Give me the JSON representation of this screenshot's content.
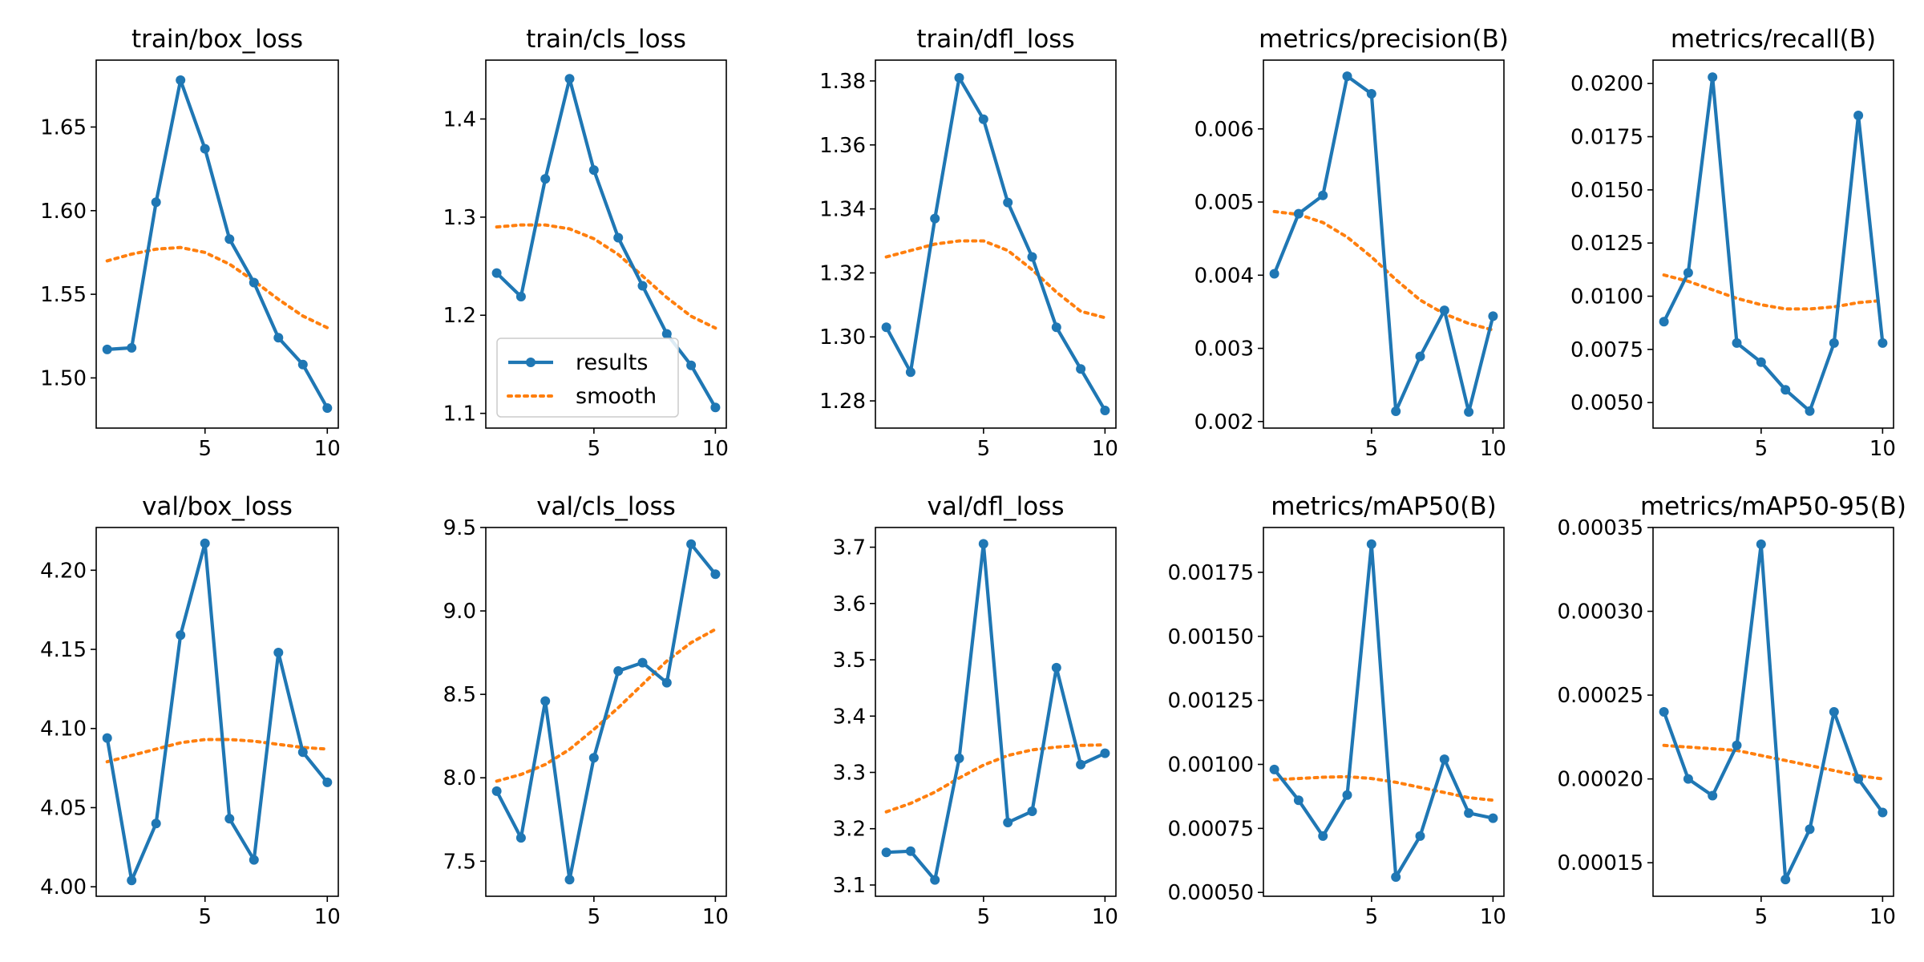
{
  "chart_data": [
    {
      "type": "line",
      "title": "train/box_loss",
      "x": [
        1,
        2,
        3,
        4,
        5,
        6,
        7,
        8,
        9,
        10
      ],
      "xticks": [
        "5",
        "10"
      ],
      "xtick_values": [
        5,
        10
      ],
      "xlim": [
        0.55,
        10.45
      ],
      "ylim": [
        1.47,
        1.69
      ],
      "yticks": [
        "1.50",
        "1.55",
        "1.60",
        "1.65"
      ],
      "ytick_values": [
        1.5,
        1.55,
        1.6,
        1.65
      ],
      "series": [
        {
          "name": "results",
          "values": [
            1.517,
            1.518,
            1.605,
            1.678,
            1.637,
            1.583,
            1.557,
            1.524,
            1.508,
            1.482
          ]
        },
        {
          "name": "smooth",
          "values": [
            1.57,
            1.574,
            1.577,
            1.578,
            1.575,
            1.568,
            1.558,
            1.547,
            1.537,
            1.53
          ]
        }
      ]
    },
    {
      "type": "line",
      "title": "train/cls_loss",
      "x": [
        1,
        2,
        3,
        4,
        5,
        6,
        7,
        8,
        9,
        10
      ],
      "xticks": [
        "5",
        "10"
      ],
      "xtick_values": [
        5,
        10
      ],
      "xlim": [
        0.55,
        10.45
      ],
      "ylim": [
        1.085,
        1.46
      ],
      "yticks": [
        "1.1",
        "1.2",
        "1.3",
        "1.4"
      ],
      "ytick_values": [
        1.1,
        1.2,
        1.3,
        1.4
      ],
      "series": [
        {
          "name": "results",
          "values": [
            1.243,
            1.219,
            1.339,
            1.441,
            1.348,
            1.279,
            1.23,
            1.181,
            1.149,
            1.106
          ]
        },
        {
          "name": "smooth",
          "values": [
            1.29,
            1.292,
            1.292,
            1.288,
            1.278,
            1.262,
            1.24,
            1.218,
            1.199,
            1.187
          ]
        }
      ]
    },
    {
      "type": "line",
      "title": "train/dfl_loss",
      "x": [
        1,
        2,
        3,
        4,
        5,
        6,
        7,
        8,
        9,
        10
      ],
      "xticks": [
        "5",
        "10"
      ],
      "xtick_values": [
        5,
        10
      ],
      "xlim": [
        0.55,
        10.45
      ],
      "ylim": [
        1.2715,
        1.3865
      ],
      "yticks": [
        "1.28",
        "1.30",
        "1.32",
        "1.34",
        "1.36",
        "1.38"
      ],
      "ytick_values": [
        1.28,
        1.3,
        1.32,
        1.34,
        1.36,
        1.38
      ],
      "series": [
        {
          "name": "results",
          "values": [
            1.303,
            1.289,
            1.337,
            1.381,
            1.368,
            1.342,
            1.325,
            1.303,
            1.29,
            1.277
          ]
        },
        {
          "name": "smooth",
          "values": [
            1.325,
            1.327,
            1.329,
            1.33,
            1.33,
            1.327,
            1.321,
            1.314,
            1.308,
            1.306
          ]
        }
      ]
    },
    {
      "type": "line",
      "title": "metrics/precision(B)",
      "x": [
        1,
        2,
        3,
        4,
        5,
        6,
        7,
        8,
        9,
        10
      ],
      "xticks": [
        "5",
        "10"
      ],
      "xtick_values": [
        5,
        10
      ],
      "xlim": [
        0.55,
        10.45
      ],
      "ylim": [
        0.00191,
        0.00694
      ],
      "yticks": [
        "0.002",
        "0.003",
        "0.004",
        "0.005",
        "0.006"
      ],
      "ytick_values": [
        0.002,
        0.003,
        0.004,
        0.005,
        0.006
      ],
      "series": [
        {
          "name": "results",
          "values": [
            0.00402,
            0.00484,
            0.00509,
            0.00672,
            0.00648,
            0.00214,
            0.00289,
            0.00352,
            0.00213,
            0.00344
          ]
        },
        {
          "name": "smooth",
          "values": [
            0.00487,
            0.00483,
            0.00472,
            0.00452,
            0.00425,
            0.00394,
            0.00366,
            0.00347,
            0.00334,
            0.00325
          ]
        }
      ]
    },
    {
      "type": "line",
      "title": "metrics/recall(B)",
      "x": [
        1,
        2,
        3,
        4,
        5,
        6,
        7,
        8,
        9,
        10
      ],
      "xticks": [
        "5",
        "10"
      ],
      "xtick_values": [
        5,
        10
      ],
      "xlim": [
        0.55,
        10.45
      ],
      "ylim": [
        0.0038,
        0.0211
      ],
      "yticks": [
        "0.0050",
        "0.0075",
        "0.0100",
        "0.0125",
        "0.0150",
        "0.0175",
        "0.0200"
      ],
      "ytick_values": [
        0.005,
        0.0075,
        0.01,
        0.0125,
        0.015,
        0.0175,
        0.02
      ],
      "series": [
        {
          "name": "results",
          "values": [
            0.0088,
            0.0111,
            0.0203,
            0.0078,
            0.0069,
            0.0056,
            0.0046,
            0.0078,
            0.0185,
            0.0078
          ]
        },
        {
          "name": "smooth",
          "values": [
            0.011,
            0.0107,
            0.0103,
            0.0099,
            0.0096,
            0.0094,
            0.0094,
            0.0095,
            0.0097,
            0.0098
          ]
        }
      ]
    },
    {
      "type": "line",
      "title": "val/box_loss",
      "x": [
        1,
        2,
        3,
        4,
        5,
        6,
        7,
        8,
        9,
        10
      ],
      "xticks": [
        "5",
        "10"
      ],
      "xtick_values": [
        5,
        10
      ],
      "xlim": [
        0.55,
        10.45
      ],
      "ylim": [
        3.994,
        4.227
      ],
      "yticks": [
        "4.00",
        "4.05",
        "4.10",
        "4.15",
        "4.20"
      ],
      "ytick_values": [
        4.0,
        4.05,
        4.1,
        4.15,
        4.2
      ],
      "series": [
        {
          "name": "results",
          "values": [
            4.094,
            4.004,
            4.04,
            4.159,
            4.217,
            4.043,
            4.017,
            4.148,
            4.085,
            4.066
          ]
        },
        {
          "name": "smooth",
          "values": [
            4.079,
            4.083,
            4.087,
            4.091,
            4.093,
            4.093,
            4.092,
            4.09,
            4.088,
            4.087
          ]
        }
      ]
    },
    {
      "type": "line",
      "title": "val/cls_loss",
      "x": [
        1,
        2,
        3,
        4,
        5,
        6,
        7,
        8,
        9,
        10
      ],
      "xticks": [
        "5",
        "10"
      ],
      "xtick_values": [
        5,
        10
      ],
      "xlim": [
        0.55,
        10.45
      ],
      "ylim": [
        7.29,
        9.5
      ],
      "yticks": [
        "7.5",
        "8.0",
        "8.5",
        "9.0",
        "9.5"
      ],
      "ytick_values": [
        7.5,
        8.0,
        8.5,
        9.0,
        9.5
      ],
      "series": [
        {
          "name": "results",
          "values": [
            7.92,
            7.64,
            8.46,
            7.39,
            8.12,
            8.64,
            8.69,
            8.57,
            9.4,
            9.22
          ]
        },
        {
          "name": "smooth",
          "values": [
            7.98,
            8.02,
            8.08,
            8.17,
            8.29,
            8.42,
            8.56,
            8.7,
            8.81,
            8.89
          ]
        }
      ]
    },
    {
      "type": "line",
      "title": "val/dfl_loss",
      "x": [
        1,
        2,
        3,
        4,
        5,
        6,
        7,
        8,
        9,
        10
      ],
      "xticks": [
        "5",
        "10"
      ],
      "xtick_values": [
        5,
        10
      ],
      "xlim": [
        0.55,
        10.45
      ],
      "ylim": [
        3.08,
        3.735
      ],
      "yticks": [
        "3.1",
        "3.2",
        "3.3",
        "3.4",
        "3.5",
        "3.6",
        "3.7"
      ],
      "ytick_values": [
        3.1,
        3.2,
        3.3,
        3.4,
        3.5,
        3.6,
        3.7
      ],
      "series": [
        {
          "name": "results",
          "values": [
            3.158,
            3.16,
            3.109,
            3.325,
            3.706,
            3.211,
            3.231,
            3.486,
            3.314,
            3.334
          ]
        },
        {
          "name": "smooth",
          "values": [
            3.23,
            3.245,
            3.265,
            3.29,
            3.313,
            3.33,
            3.34,
            3.345,
            3.348,
            3.349
          ]
        }
      ]
    },
    {
      "type": "line",
      "title": "metrics/mAP50(B)",
      "x": [
        1,
        2,
        3,
        4,
        5,
        6,
        7,
        8,
        9,
        10
      ],
      "xticks": [
        "5",
        "10"
      ],
      "xtick_values": [
        5,
        10
      ],
      "xlim": [
        0.55,
        10.45
      ],
      "ylim": [
        0.000485,
        0.001925
      ],
      "yticks": [
        "0.00050",
        "0.00075",
        "0.00100",
        "0.00125",
        "0.00150",
        "0.00175"
      ],
      "ytick_values": [
        0.0005,
        0.00075,
        0.001,
        0.00125,
        0.0015,
        0.00175
      ],
      "series": [
        {
          "name": "results",
          "values": [
            0.00098,
            0.00086,
            0.00072,
            0.00088,
            0.00186,
            0.00056,
            0.00072,
            0.00102,
            0.00081,
            0.00079
          ]
        },
        {
          "name": "smooth",
          "values": [
            0.00094,
            0.000945,
            0.00095,
            0.000952,
            0.000945,
            0.00093,
            0.00091,
            0.00089,
            0.00087,
            0.00086
          ]
        }
      ]
    },
    {
      "type": "line",
      "title": "metrics/mAP50-95(B)",
      "x": [
        1,
        2,
        3,
        4,
        5,
        6,
        7,
        8,
        9,
        10
      ],
      "xticks": [
        "5",
        "10"
      ],
      "xtick_values": [
        5,
        10
      ],
      "xlim": [
        0.55,
        10.45
      ],
      "ylim": [
        0.00013,
        0.00035
      ],
      "yticks": [
        "0.00015",
        "0.00020",
        "0.00025",
        "0.00030",
        "0.00035"
      ],
      "ytick_values": [
        0.00015,
        0.0002,
        0.00025,
        0.0003,
        0.00035
      ],
      "series": [
        {
          "name": "results",
          "values": [
            0.00024,
            0.0002,
            0.00019,
            0.00022,
            0.00034,
            0.00014,
            0.00017,
            0.00024,
            0.0002,
            0.00018
          ]
        },
        {
          "name": "smooth",
          "values": [
            0.00022,
            0.000219,
            0.000218,
            0.000217,
            0.000214,
            0.000211,
            0.000208,
            0.000205,
            0.000202,
            0.0002
          ]
        }
      ]
    }
  ],
  "legend": {
    "panel": 1,
    "placement": "lower-left",
    "entries": [
      "results",
      "smooth"
    ]
  },
  "colors": {
    "results": "#1f77b4",
    "smooth": "#ff7f0e"
  }
}
